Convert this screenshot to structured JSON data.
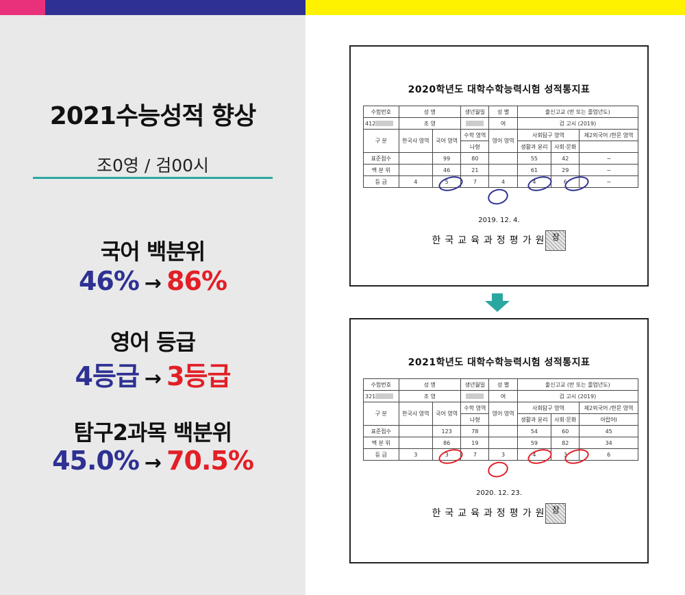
{
  "summary": {
    "title": "2021수능성적 향상",
    "student": "조0영 / 검00시",
    "metrics": [
      {
        "label": "국어 백분위",
        "before": "46%",
        "after": "86%"
      },
      {
        "label": "영어 등급",
        "before": "4등급",
        "after": "3등급"
      },
      {
        "label": "탐구2과목 백분위",
        "before": "45.0%",
        "after": "70.5%"
      }
    ],
    "arrow": "→"
  },
  "cards": [
    {
      "title": "2020학년도 대학수학능력시험 성적통지표",
      "headers": {
        "exam_no": "수험번호",
        "name": "성 명",
        "birth": "생년월일",
        "gender": "성 별",
        "school": "출신고교 (반 또는 졸업년도)"
      },
      "info": {
        "exam_no": "412",
        "name": "조 영",
        "gender": "여",
        "school": "검 고시 (2019)"
      },
      "sub_headers": {
        "category": "구 분",
        "history": "한국사 영역",
        "korean": "국어 영역",
        "math": "수학 영역",
        "math_type": "나형",
        "english": "영어 영역",
        "social": "사회탐구 영역",
        "social1": "생활과 윤리",
        "social2": "사회·문화",
        "lang2": "제2외국어 /한문 영역",
        "lang2_sub": ""
      },
      "rows": [
        {
          "label": "표준점수",
          "history": "",
          "korean": "99",
          "math": "80",
          "english": "",
          "social1": "55",
          "social2": "42",
          "lang2": "−"
        },
        {
          "label": "백 분 위",
          "history": "",
          "korean": "46",
          "math": "21",
          "english": "",
          "social1": "61",
          "social2": "29",
          "lang2": "−"
        },
        {
          "label": "등 급",
          "history": "4",
          "korean": "5",
          "math": "7",
          "english": "4",
          "social1": "4",
          "social2": "6",
          "lang2": "−"
        }
      ],
      "date": "2019. 12. 4.",
      "org": "한국교육과정평가원",
      "stamp": "장",
      "mark_color": "#2e3192"
    },
    {
      "title": "2021학년도 대학수학능력시험 성적통지표",
      "headers": {
        "exam_no": "수험번호",
        "name": "성 명",
        "birth": "생년월일",
        "gender": "성 별",
        "school": "출신고교 (반 또는 졸업년도)"
      },
      "info": {
        "exam_no": "321",
        "name": "조 영",
        "gender": "여",
        "school": "검 고시 (2019)"
      },
      "sub_headers": {
        "category": "구 분",
        "history": "한국사 영역",
        "korean": "국어 영역",
        "math": "수학 영역",
        "math_type": "나형",
        "english": "영어 영역",
        "social": "사회탐구 영역",
        "social1": "생활과 윤리",
        "social2": "사회·문화",
        "lang2": "제2외국어 /한문 영역",
        "lang2_sub": "아랍어I"
      },
      "rows": [
        {
          "label": "표준점수",
          "history": "",
          "korean": "123",
          "math": "78",
          "english": "",
          "social1": "54",
          "social2": "60",
          "lang2": "45"
        },
        {
          "label": "백 분 위",
          "history": "",
          "korean": "86",
          "math": "19",
          "english": "",
          "social1": "59",
          "social2": "82",
          "lang2": "34"
        },
        {
          "label": "등 급",
          "history": "3",
          "korean": "3",
          "math": "7",
          "english": "3",
          "social1": "4",
          "social2": "3",
          "lang2": "6"
        }
      ],
      "date": "2020. 12. 23.",
      "org": "한국교육과정평가원",
      "stamp": "장",
      "mark_color": "#e21f26"
    }
  ]
}
